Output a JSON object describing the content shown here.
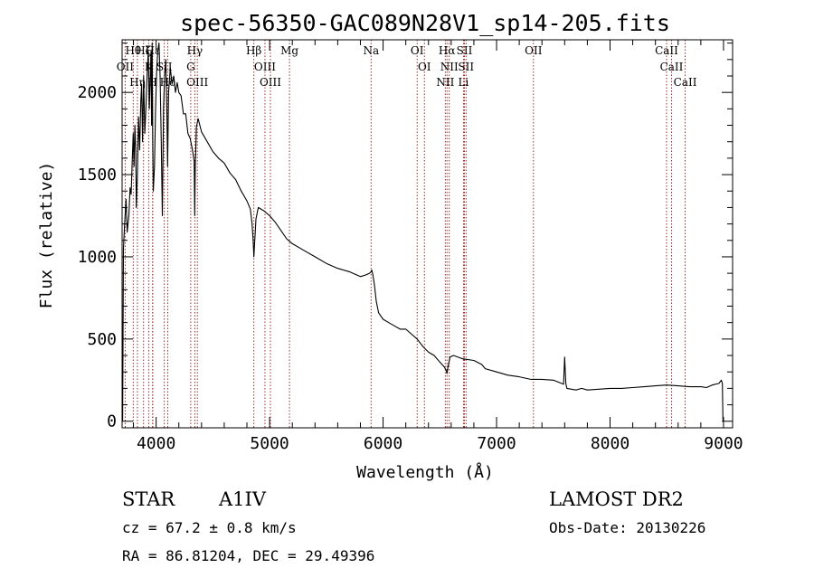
{
  "title": "spec-56350-GAC089N28V1_sp14-205.fits",
  "chart_data": {
    "type": "line",
    "title": "spec-56350-GAC089N28V1_sp14-205.fits",
    "xlabel": "Wavelength (Å)",
    "ylabel": "Flux (relative)",
    "xlim": [
      3700,
      9080
    ],
    "ylim": [
      -40,
      2320
    ],
    "xticks": [
      4000,
      5000,
      6000,
      7000,
      8000,
      9000
    ],
    "yticks": [
      0,
      500,
      1000,
      1500,
      2000
    ],
    "grid": false,
    "line_color": "#000000",
    "marker_color": "#8b1a1a",
    "series": [
      {
        "x": [
          3705,
          3712,
          3722,
          3735,
          3745,
          3760,
          3770,
          3780,
          3790,
          3798,
          3805,
          3812,
          3820,
          3825,
          3835,
          3845,
          3855,
          3865,
          3872,
          3880,
          3890,
          3900,
          3910,
          3920,
          3930,
          3940,
          3950,
          3955,
          3960,
          3965,
          3970,
          3975,
          3985,
          3995,
          4005,
          4015,
          4025,
          4035,
          4045,
          4055,
          4065,
          4075,
          4085,
          4095,
          4101,
          4110,
          4125,
          4140,
          4155,
          4170,
          4185,
          4200,
          4220,
          4240,
          4260,
          4280,
          4300,
          4320,
          4335,
          4340,
          4345,
          4355,
          4370,
          4400,
          4450,
          4500,
          4550,
          4600,
          4650,
          4700,
          4750,
          4800,
          4830,
          4845,
          4855,
          4861,
          4868,
          4880,
          4900,
          4950,
          5000,
          5050,
          5100,
          5150,
          5200,
          5300,
          5400,
          5500,
          5600,
          5700,
          5800,
          5850,
          5880,
          5895,
          5900,
          5910,
          5925,
          5940,
          5960,
          6000,
          6050,
          6100,
          6150,
          6200,
          6250,
          6300,
          6350,
          6400,
          6450,
          6500,
          6540,
          6555,
          6563,
          6572,
          6590,
          6620,
          6700,
          6800,
          6870,
          6900,
          7000,
          7100,
          7200,
          7300,
          7400,
          7500,
          7590,
          7600,
          7610,
          7620,
          7700,
          7750,
          7800,
          7900,
          8000,
          8100,
          8200,
          8300,
          8400,
          8500,
          8600,
          8700,
          8800,
          8850,
          8900,
          8960,
          8980,
          8990,
          8995,
          9000
        ],
        "y": [
          0,
          1050,
          1200,
          1350,
          1150,
          1250,
          1420,
          1380,
          1600,
          1750,
          1550,
          1800,
          1650,
          1300,
          1500,
          1850,
          1650,
          1950,
          2050,
          1700,
          2100,
          1750,
          1900,
          2100,
          2250,
          1900,
          2150,
          2250,
          1800,
          2300,
          1700,
          1400,
          1550,
          1900,
          2150,
          2250,
          2300,
          2100,
          1700,
          1250,
          1900,
          2100,
          2200,
          1850,
          1550,
          2000,
          2150,
          2050,
          2100,
          2000,
          2060,
          2000,
          1980,
          1870,
          1870,
          1750,
          1720,
          1650,
          1580,
          1250,
          1550,
          1790,
          1840,
          1760,
          1700,
          1640,
          1600,
          1570,
          1510,
          1470,
          1400,
          1340,
          1290,
          1200,
          1100,
          1000,
          1080,
          1230,
          1300,
          1280,
          1250,
          1210,
          1160,
          1110,
          1080,
          1040,
          1000,
          960,
          930,
          910,
          880,
          890,
          900,
          910,
          920,
          890,
          820,
          730,
          660,
          620,
          600,
          580,
          560,
          560,
          530,
          500,
          455,
          420,
          400,
          360,
          330,
          310,
          290,
          330,
          390,
          400,
          380,
          370,
          345,
          320,
          300,
          280,
          270,
          255,
          255,
          250,
          225,
          390,
          230,
          200,
          190,
          200,
          190,
          195,
          200,
          200,
          205,
          210,
          215,
          220,
          215,
          210,
          210,
          205,
          220,
          230,
          250,
          230,
          10,
          0
        ]
      }
    ],
    "spectral_lines": [
      {
        "label": "Hθ",
        "x": 3798
      },
      {
        "label": "OII",
        "x": 3727
      },
      {
        "label": "Hη",
        "x": 3835
      },
      {
        "label": "Hζ",
        "x": 3889
      },
      {
        "label": "K",
        "x": 3934
      },
      {
        "label": "H",
        "x": 3969
      },
      {
        "label": "Hε",
        "x": 3970
      },
      {
        "label": "SII",
        "x": 4072
      },
      {
        "label": "Hδ",
        "x": 4102
      },
      {
        "label": "Hγ",
        "x": 4341
      },
      {
        "label": "G",
        "x": 4305
      },
      {
        "label": "OIII",
        "x": 4363
      },
      {
        "label": "Hβ",
        "x": 4861
      },
      {
        "label": "OIII",
        "x": 4959
      },
      {
        "label": "OIII",
        "x": 5007
      },
      {
        "label": "Mg",
        "x": 5175
      },
      {
        "label": "Na",
        "x": 5894
      },
      {
        "label": "OI",
        "x": 6300
      },
      {
        "label": "OI",
        "x": 6364
      },
      {
        "label": "NII",
        "x": 6548
      },
      {
        "label": "Hα",
        "x": 6563
      },
      {
        "label": "NII",
        "x": 6583
      },
      {
        "label": "Li",
        "x": 6708
      },
      {
        "label": "SII",
        "x": 6717
      },
      {
        "label": "SII",
        "x": 6731
      },
      {
        "label": "OII",
        "x": 7325
      },
      {
        "label": "CaII",
        "x": 8498
      },
      {
        "label": "CaII",
        "x": 8542
      },
      {
        "label": "CaII",
        "x": 8662
      }
    ]
  },
  "info": {
    "object_class": "STAR",
    "subclass": "A1IV",
    "survey": "LAMOST DR2",
    "cz": "cz = 67.2 ± 0.8 km/s",
    "obs_date": "Obs-Date: 20130226",
    "radec": "RA =  86.81204, DEC =  29.49396"
  }
}
